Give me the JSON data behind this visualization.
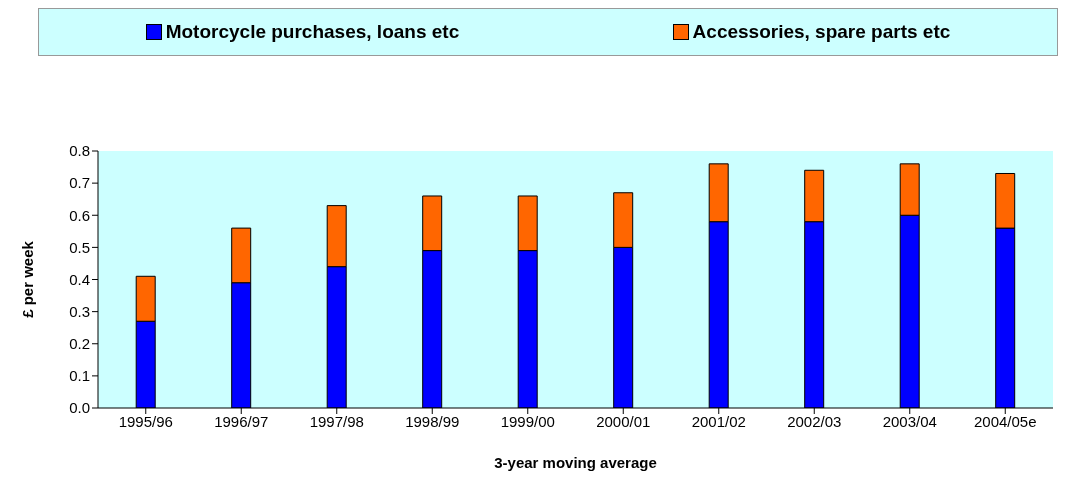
{
  "chart_data": {
    "type": "bar",
    "stacked": true,
    "xlabel": "3-year moving average",
    "ylabel": "£ per week",
    "categories": [
      "1995/96",
      "1996/97",
      "1997/98",
      "1998/99",
      "1999/00",
      "2000/01",
      "2001/02",
      "2002/03",
      "2003/04",
      "2004/05e"
    ],
    "series": [
      {
        "name": "Motorcycle purchases, loans etc",
        "color": "#0000ff",
        "values": [
          0.27,
          0.39,
          0.44,
          0.49,
          0.49,
          0.5,
          0.58,
          0.58,
          0.6,
          0.56
        ]
      },
      {
        "name": "Accessories, spare parts etc",
        "color": "#ff6600",
        "values": [
          0.14,
          0.17,
          0.19,
          0.17,
          0.17,
          0.17,
          0.18,
          0.16,
          0.16,
          0.17
        ]
      }
    ],
    "ylim": [
      0,
      0.8
    ],
    "yticks": [
      {
        "value": 0,
        "label": "0.0"
      },
      {
        "value": 0.1,
        "label": "0.1"
      },
      {
        "value": 0.2,
        "label": "0.2"
      },
      {
        "value": 0.3,
        "label": "0.3"
      },
      {
        "value": 0.4,
        "label": "0.4"
      },
      {
        "value": 0.5,
        "label": "0.5"
      },
      {
        "value": 0.6,
        "label": "0.6"
      },
      {
        "value": 0.7,
        "label": "0.7"
      },
      {
        "value": 0.8,
        "label": "0.8"
      }
    ],
    "grid": false,
    "legend": "top"
  }
}
